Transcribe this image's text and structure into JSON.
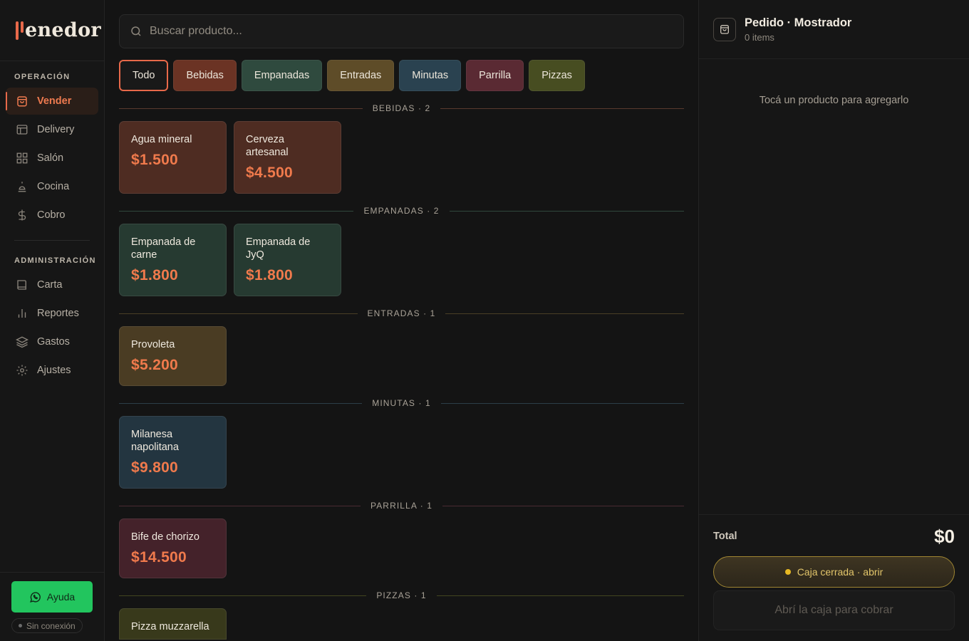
{
  "app": {
    "logo_text": "enedor"
  },
  "sidebar": {
    "section_operacion": "OPERACIÓN",
    "section_admin": "ADMINISTRACIÓN",
    "operacion_items": [
      {
        "label": "Vender",
        "icon": "bag-icon",
        "active": true
      },
      {
        "label": "Delivery",
        "icon": "delivery-icon",
        "active": false
      },
      {
        "label": "Salón",
        "icon": "grid-icon",
        "active": false
      },
      {
        "label": "Cocina",
        "icon": "chef-icon",
        "active": false
      },
      {
        "label": "Cobro",
        "icon": "dollar-icon",
        "active": false
      }
    ],
    "admin_items": [
      {
        "label": "Carta",
        "icon": "book-icon"
      },
      {
        "label": "Reportes",
        "icon": "chart-icon"
      },
      {
        "label": "Gastos",
        "icon": "layers-icon"
      },
      {
        "label": "Ajustes",
        "icon": "gear-icon"
      }
    ],
    "help_label": "Ayuda",
    "connection_status": "Sin conexión"
  },
  "search": {
    "placeholder": "Buscar producto...",
    "value": ""
  },
  "categories": [
    {
      "label": "Todo",
      "active": true,
      "color": "#191919"
    },
    {
      "label": "Bebidas",
      "color": "#6b3324"
    },
    {
      "label": "Empanadas",
      "color": "#2f4a3e"
    },
    {
      "label": "Entradas",
      "color": "#5e4c28"
    },
    {
      "label": "Minutas",
      "color": "#2a4250"
    },
    {
      "label": "Parrilla",
      "color": "#5a2a33"
    },
    {
      "label": "Pizzas",
      "color": "#474d21"
    }
  ],
  "sections": [
    {
      "label": "BEBIDAS",
      "count": "· 2",
      "line_color": "#5a3a2e",
      "card_color": "#4e2c22",
      "items": [
        {
          "name": "Agua mineral",
          "price": "$1.500"
        },
        {
          "name": "Cerveza artesanal",
          "price": "$4.500"
        }
      ]
    },
    {
      "label": "EMPANADAS",
      "count": "· 2",
      "line_color": "#30473d",
      "card_color": "#263a31",
      "items": [
        {
          "name": "Empanada de carne",
          "price": "$1.800"
        },
        {
          "name": "Empanada de JyQ",
          "price": "$1.800"
        }
      ]
    },
    {
      "label": "ENTRADAS",
      "count": "· 1",
      "line_color": "#4a3f26",
      "card_color": "#4a3c23",
      "items": [
        {
          "name": "Provoleta",
          "price": "$5.200"
        }
      ]
    },
    {
      "label": "MINUTAS",
      "count": "· 1",
      "line_color": "#2c3e48",
      "card_color": "#233540",
      "items": [
        {
          "name": "Milanesa napolitana",
          "price": "$9.800"
        }
      ]
    },
    {
      "label": "PARRILLA",
      "count": "· 1",
      "line_color": "#4a2a31",
      "card_color": "#44222a",
      "items": [
        {
          "name": "Bife de chorizo",
          "price": "$14.500"
        }
      ]
    },
    {
      "label": "PIZZAS",
      "count": "· 1",
      "line_color": "#42461f",
      "card_color": "#38391b",
      "items": [
        {
          "name": "Pizza muzzarella",
          "price": ""
        }
      ]
    }
  ],
  "order": {
    "title": "Pedido · Mostrador",
    "items_count": "0 items",
    "empty_text": "Tocá un producto para agregarlo",
    "total_label": "Total",
    "total_value": "$0",
    "caja_label": "Caja cerrada · abrir",
    "cobrar_label": "Abrí la caja para cobrar"
  },
  "colors": {
    "accent": "#e8694a",
    "help_green": "#22c55e",
    "caja_gold": "#e2c56a"
  }
}
